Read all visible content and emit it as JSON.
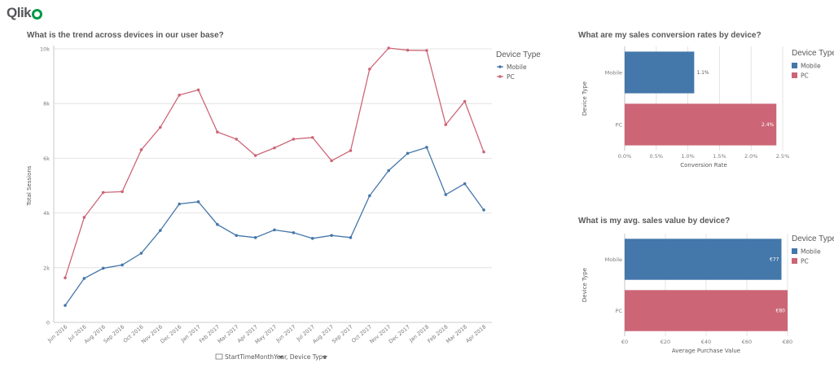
{
  "app": {
    "logo_text": "Qlik"
  },
  "colors": {
    "mobile": "#4477aa",
    "pc": "#cc6677",
    "grid": "#dddddd",
    "axis": "#bbbbbb"
  },
  "chart_data": [
    {
      "id": "trend",
      "type": "line",
      "title": "What is the trend across devices in our user base?",
      "xlabel": "",
      "ylabel": "Total Sessions",
      "x": [
        "Jun 2016",
        "Jul 2016",
        "Aug 2016",
        "Sep 2016",
        "Oct 2016",
        "Nov 2016",
        "Dec 2016",
        "Jan 2017",
        "Feb 2017",
        "Mar 2017",
        "Apr 2017",
        "May 2017",
        "Jun 2017",
        "Jul 2017",
        "Aug 2017",
        "Sep 2017",
        "Oct 2017",
        "Nov 2017",
        "Dec 2017",
        "Jan 2018",
        "Feb 2018",
        "Mar 2018",
        "Apr 2018"
      ],
      "y_ticks": [
        "0",
        "2k",
        "4k",
        "6k",
        "8k",
        "10k"
      ],
      "ylim": [
        0,
        10000
      ],
      "grid": true,
      "legend_title": "Device Type",
      "legend_position": "right",
      "series": [
        {
          "name": "Mobile",
          "color": "#4477aa",
          "values": [
            620,
            1610,
            1980,
            2100,
            2530,
            3360,
            4330,
            4410,
            3580,
            3180,
            3100,
            3380,
            3280,
            3070,
            3180,
            3100,
            4630,
            5550,
            6180,
            6400,
            4670,
            5070,
            4110
          ]
        },
        {
          "name": "PC",
          "color": "#cc6677",
          "values": [
            1630,
            3840,
            4750,
            4780,
            6310,
            7130,
            8310,
            8500,
            6960,
            6700,
            6100,
            6380,
            6700,
            6760,
            5910,
            6280,
            9260,
            10030,
            9950,
            9940,
            7230,
            8080,
            6230
          ]
        }
      ],
      "dimension_bar": {
        "dim1": "StartTimeMonthYear",
        "dim2": ", Device Type"
      }
    },
    {
      "id": "conversion",
      "type": "bar",
      "orientation": "horizontal",
      "title": "What are my sales conversion rates by device?",
      "xlabel": "Conversion Rate",
      "ylabel": "Device Type",
      "categories": [
        "Mobile",
        "PC"
      ],
      "values": [
        1.1,
        2.4
      ],
      "value_labels": [
        "1.1%",
        "2.4%"
      ],
      "x_ticks": [
        "0.0%",
        "0.5%",
        "1.0%",
        "1.5%",
        "2.0%",
        "2.5%"
      ],
      "xlim": [
        0,
        2.5
      ],
      "grid": true,
      "legend_title": "Device Type",
      "legend_position": "right",
      "legend": [
        "Mobile",
        "PC"
      ]
    },
    {
      "id": "avgsales",
      "type": "bar",
      "orientation": "horizontal",
      "title": "What is my avg. sales value by device?",
      "xlabel": "Average Purchase Value",
      "ylabel": "Device Type",
      "categories": [
        "Mobile",
        "PC"
      ],
      "values": [
        77,
        80
      ],
      "value_labels": [
        "€77",
        "€80"
      ],
      "x_ticks": [
        "€0",
        "€20",
        "€40",
        "€60",
        "€80"
      ],
      "xlim": [
        0,
        80
      ],
      "grid": true,
      "legend_title": "Device Type",
      "legend_position": "right",
      "legend": [
        "Mobile",
        "PC"
      ]
    }
  ]
}
